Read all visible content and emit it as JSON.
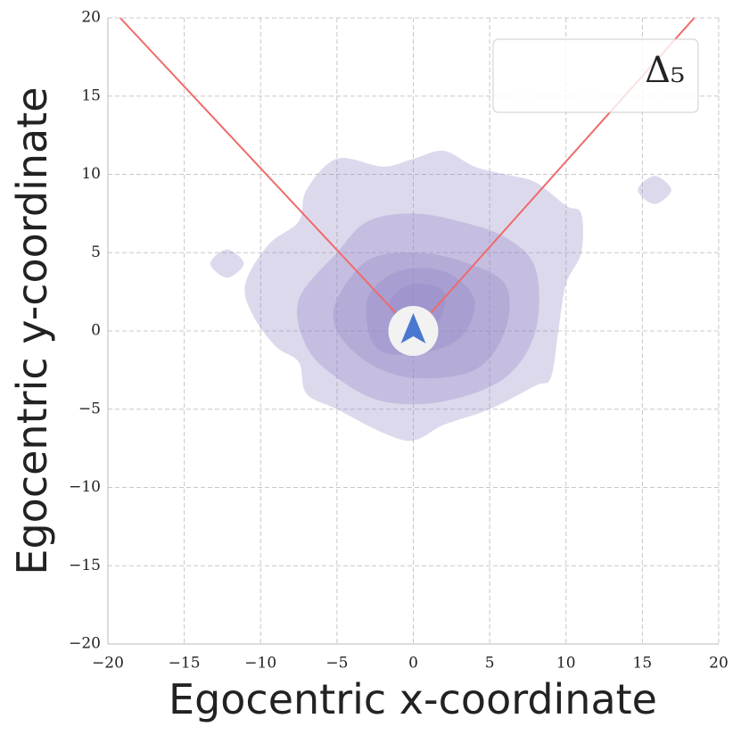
{
  "chart_data": {
    "type": "density",
    "xlabel": "Egocentric x-coordinate",
    "ylabel": "Egocentric y-coordinate",
    "legend_label": "Δ₅",
    "legend_position": "upper right",
    "xlim": [
      -20,
      20
    ],
    "ylim": [
      -20,
      20
    ],
    "xticks": [
      {
        "value": -20,
        "label": "−20"
      },
      {
        "value": -15,
        "label": "−15"
      },
      {
        "value": -10,
        "label": "−10"
      },
      {
        "value": -5,
        "label": "−5"
      },
      0,
      5,
      10,
      15,
      20
    ],
    "yticks": [
      {
        "value": -20,
        "label": "−20"
      },
      {
        "value": -15,
        "label": "−15"
      },
      {
        "value": -10,
        "label": "−10"
      },
      {
        "value": -5,
        "label": "−5"
      },
      0,
      5,
      10,
      15,
      20
    ],
    "grid": true,
    "density_color": "#8e80c4",
    "contours": [
      {
        "x": [
          -11,
          -9.5,
          -7.5,
          -7,
          -5,
          -2,
          0,
          2,
          4,
          6,
          8,
          10,
          11,
          11,
          10,
          9.5,
          9,
          8,
          5,
          2,
          0,
          -2,
          -5,
          -7,
          -7.5,
          -9,
          -10.5
        ],
        "y": [
          3,
          5.5,
          7,
          9,
          11,
          10.5,
          11,
          11.5,
          10.5,
          10,
          9.5,
          8,
          7.5,
          5,
          3,
          0,
          -3,
          -3.5,
          -5,
          -6,
          -7,
          -6.5,
          -5,
          -4,
          -2,
          -1,
          1
        ]
      },
      {
        "x": [
          -13.3,
          -12.2,
          -11.1,
          -12.2
        ],
        "y": [
          4.3,
          5.2,
          4.3,
          3.4
        ]
      },
      {
        "x": [
          14.7,
          15.8,
          16.9,
          15.8
        ],
        "y": [
          9,
          9.9,
          9,
          8.1
        ]
      },
      {
        "x": [
          -7.5,
          -5,
          -3,
          0,
          3,
          6,
          8,
          8,
          6,
          2,
          -2,
          -5,
          -7
        ],
        "y": [
          2,
          5,
          7,
          7.5,
          7,
          6,
          4,
          0,
          -3,
          -4.5,
          -4.5,
          -3,
          -1
        ]
      },
      {
        "x": [
          -5,
          -3,
          0,
          3,
          6,
          6,
          4,
          0,
          -3,
          -5
        ],
        "y": [
          2,
          4.5,
          5,
          4.5,
          3,
          0,
          -2.5,
          -3,
          -2,
          0
        ]
      },
      {
        "x": [
          -3,
          -1,
          2,
          4,
          3,
          0,
          -2.5
        ],
        "y": [
          2,
          3.8,
          3.8,
          2,
          -0.5,
          -1.5,
          -1
        ]
      },
      {
        "x": [
          -1.5,
          0,
          2,
          1.5,
          -1
        ],
        "y": [
          2,
          3,
          2.5,
          0.5,
          0.8
        ]
      }
    ],
    "lines": [
      {
        "color": "#f06a6a",
        "x": [
          -1.1,
          -19.2
        ],
        "y": [
          1.1,
          20
        ]
      },
      {
        "color": "#f06a6a",
        "x": [
          1.1,
          18.4
        ],
        "y": [
          1.1,
          20
        ]
      }
    ]
  }
}
